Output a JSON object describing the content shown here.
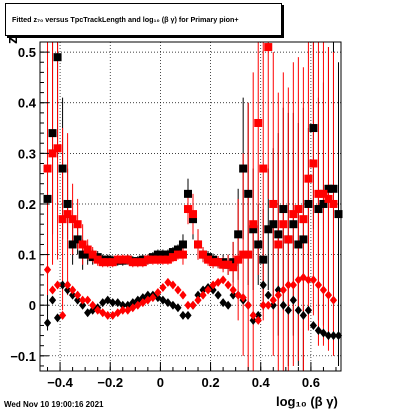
{
  "title": "Fitted  z₇₀ versus TpcTrackLength and log₁₀ (β γ) for Primary pion+",
  "footer_timestamp": "Wed Nov 10 19:00:16 2021",
  "chart_data": {
    "type": "scatter",
    "title": "Fitted  z₇₀ versus TpcTrackLength and log₁₀ (β γ) for Primary pion+",
    "xlabel": "log₁₀ (β γ)",
    "ylabel": "z",
    "xlim": [
      -0.48,
      0.72
    ],
    "ylim": [
      -0.13,
      0.52
    ],
    "grid": true,
    "xticks": [
      "−0.4",
      "−0.2",
      "0",
      "0.2",
      "0.4",
      "0.6"
    ],
    "xtick_values": [
      -0.4,
      -0.2,
      0,
      0.2,
      0.4,
      0.6
    ],
    "yticks": [
      "−0.1",
      "0",
      "0.1",
      "0.2",
      "0.3",
      "0.4",
      "0.5"
    ],
    "ytick_values": [
      -0.1,
      0,
      0.1,
      0.2,
      0.3,
      0.4,
      0.5
    ],
    "series": [
      {
        "color": "#000000",
        "marker": "square",
        "x": [
          -0.45,
          -0.43,
          -0.41,
          -0.39,
          -0.37,
          -0.35,
          -0.33,
          -0.31,
          -0.29,
          -0.27,
          -0.25,
          -0.23,
          -0.21,
          -0.19,
          -0.17,
          -0.15,
          -0.13,
          -0.11,
          -0.09,
          -0.07,
          -0.05,
          -0.03,
          -0.01,
          0.01,
          0.03,
          0.05,
          0.07,
          0.09,
          0.11,
          0.13,
          0.15,
          0.17,
          0.19,
          0.21,
          0.23,
          0.25,
          0.27,
          0.29,
          0.31,
          0.33,
          0.35,
          0.37,
          0.39,
          0.41,
          0.43,
          0.45,
          0.47,
          0.49,
          0.51,
          0.53,
          0.55,
          0.57,
          0.59,
          0.61,
          0.63,
          0.65,
          0.67,
          0.69,
          0.71
        ],
        "y": [
          0.21,
          0.34,
          0.49,
          0.27,
          0.2,
          0.12,
          0.13,
          0.1,
          0.1,
          0.095,
          0.095,
          0.09,
          0.09,
          0.088,
          0.088,
          0.088,
          0.09,
          0.087,
          0.087,
          0.09,
          0.09,
          0.095,
          0.1,
          0.1,
          0.1,
          0.105,
          0.11,
          0.12,
          0.22,
          0.17,
          0.12,
          0.1,
          0.095,
          0.09,
          0.085,
          0.085,
          0.08,
          0.085,
          0.14,
          0.27,
          0.22,
          0.15,
          0.12,
          0.09,
          0.15,
          0.16,
          0.14,
          0.19,
          0.13,
          0.16,
          0.12,
          0.13,
          0.2,
          0.35,
          0.19,
          0.2,
          0.23,
          0.23,
          0.18
        ],
        "err": [
          0.26,
          0.2,
          0.2,
          0.14,
          0.07,
          0.04,
          0.03,
          0.03,
          0.02,
          0.015,
          0.012,
          0.01,
          0.01,
          0.01,
          0.01,
          0.01,
          0.01,
          0.01,
          0.01,
          0.01,
          0.01,
          0.01,
          0.01,
          0.01,
          0.01,
          0.01,
          0.01,
          0.02,
          0.03,
          0.04,
          0.03,
          0.015,
          0.012,
          0.012,
          0.012,
          0.015,
          0.02,
          0.04,
          0.09,
          0.14,
          0.18,
          0.12,
          0.08,
          0.1,
          0.12,
          0.15,
          0.2,
          0.2,
          0.25,
          0.22,
          0.24,
          0.26,
          0.15,
          0.2,
          0.22,
          0.24,
          0.28,
          0.3,
          0.3
        ]
      },
      {
        "color": "#ff0000",
        "marker": "square",
        "x": [
          -0.45,
          -0.43,
          -0.41,
          -0.39,
          -0.37,
          -0.35,
          -0.33,
          -0.31,
          -0.29,
          -0.27,
          -0.25,
          -0.23,
          -0.21,
          -0.19,
          -0.17,
          -0.15,
          -0.13,
          -0.11,
          -0.09,
          -0.07,
          -0.05,
          -0.03,
          -0.01,
          0.01,
          0.03,
          0.05,
          0.07,
          0.09,
          0.11,
          0.13,
          0.15,
          0.17,
          0.19,
          0.21,
          0.23,
          0.25,
          0.27,
          0.29,
          0.31,
          0.33,
          0.35,
          0.37,
          0.39,
          0.41,
          0.43,
          0.45,
          0.47,
          0.49,
          0.51,
          0.53,
          0.55,
          0.57,
          0.59,
          0.61,
          0.63,
          0.65,
          0.67,
          0.69
        ],
        "y": [
          0.27,
          0.3,
          0.31,
          0.17,
          0.18,
          0.17,
          0.16,
          0.12,
          0.11,
          0.1,
          0.09,
          0.085,
          0.085,
          0.085,
          0.09,
          0.09,
          0.09,
          0.085,
          0.085,
          0.085,
          0.09,
          0.09,
          0.09,
          0.09,
          0.09,
          0.095,
          0.1,
          0.1,
          0.19,
          0.18,
          0.12,
          0.1,
          0.09,
          0.085,
          0.085,
          0.08,
          0.08,
          0.075,
          0.09,
          0.1,
          0.1,
          0.16,
          0.36,
          0.27,
          0.51,
          0.2,
          0.12,
          0.16,
          0.13,
          0.18,
          0.19,
          0.17,
          0.25,
          0.28,
          0.22,
          0.22,
          0.21,
          0.2
        ],
        "err": [
          0.25,
          0.22,
          0.22,
          0.18,
          0.16,
          0.07,
          0.05,
          0.04,
          0.02,
          0.015,
          0.012,
          0.01,
          0.01,
          0.01,
          0.01,
          0.01,
          0.01,
          0.01,
          0.01,
          0.01,
          0.01,
          0.01,
          0.01,
          0.01,
          0.01,
          0.01,
          0.01,
          0.02,
          0.03,
          0.04,
          0.03,
          0.015,
          0.012,
          0.012,
          0.012,
          0.015,
          0.02,
          0.05,
          0.12,
          0.2,
          0.3,
          0.3,
          0.3,
          0.3,
          0.3,
          0.3,
          0.3,
          0.3,
          0.3,
          0.3,
          0.3,
          0.3,
          0.3,
          0.3,
          0.3,
          0.3,
          0.3,
          0.3
        ]
      },
      {
        "color": "#000000",
        "marker": "diamond",
        "x": [
          -0.45,
          -0.43,
          -0.41,
          -0.39,
          -0.37,
          -0.35,
          -0.33,
          -0.31,
          -0.29,
          -0.27,
          -0.25,
          -0.23,
          -0.21,
          -0.19,
          -0.17,
          -0.15,
          -0.13,
          -0.11,
          -0.09,
          -0.07,
          -0.05,
          -0.03,
          -0.01,
          0.01,
          0.03,
          0.05,
          0.07,
          0.09,
          0.11,
          0.13,
          0.15,
          0.17,
          0.19,
          0.21,
          0.23,
          0.25,
          0.27,
          0.29,
          0.31,
          0.33,
          0.35,
          0.37,
          0.39,
          0.41,
          0.43,
          0.45,
          0.47,
          0.49,
          0.51,
          0.53,
          0.55,
          0.57,
          0.59,
          0.61,
          0.63,
          0.65,
          0.67,
          0.69,
          0.71
        ],
        "y": [
          -0.035,
          0.01,
          -0.025,
          0.04,
          0.03,
          0.02,
          0.01,
          0.0,
          -0.015,
          -0.01,
          -0.005,
          0.005,
          0.01,
          0.005,
          0.005,
          0.0,
          0.0,
          0.005,
          0.01,
          0.015,
          0.02,
          0.02,
          0.015,
          0.01,
          0.005,
          0.0,
          -0.005,
          -0.02,
          -0.02,
          0.0,
          0.02,
          0.03,
          0.035,
          0.03,
          0.02,
          0.005,
          0.0,
          0.02,
          0.02,
          0.01,
          0.0,
          -0.03,
          -0.02,
          0.04,
          0.02,
          0.0,
          0.03,
          0.0,
          -0.01,
          0.01,
          -0.01,
          -0.02,
          -0.01,
          -0.04,
          -0.05,
          -0.055,
          -0.06,
          -0.06,
          -0.06
        ]
      },
      {
        "color": "#ff0000",
        "marker": "diamond",
        "x": [
          -0.45,
          -0.43,
          -0.41,
          -0.39,
          -0.37,
          -0.35,
          -0.33,
          -0.31,
          -0.29,
          -0.27,
          -0.25,
          -0.23,
          -0.21,
          -0.19,
          -0.17,
          -0.15,
          -0.13,
          -0.11,
          -0.09,
          -0.07,
          -0.05,
          -0.03,
          -0.01,
          0.01,
          0.03,
          0.05,
          0.07,
          0.09,
          0.11,
          0.13,
          0.15,
          0.17,
          0.19,
          0.21,
          0.23,
          0.25,
          0.27,
          0.29,
          0.31,
          0.33,
          0.35,
          0.37,
          0.39,
          0.41,
          0.43,
          0.45,
          0.47,
          0.49,
          0.51,
          0.53,
          0.55,
          0.57,
          0.59,
          0.61,
          0.63,
          0.65,
          0.67,
          0.69
        ],
        "y": [
          0.07,
          0.03,
          0.04,
          -0.02,
          0.04,
          0.03,
          0.02,
          0.01,
          0.01,
          0.0,
          -0.01,
          -0.015,
          -0.02,
          -0.02,
          -0.015,
          -0.01,
          -0.01,
          -0.005,
          0.0,
          0.005,
          0.01,
          0.015,
          0.025,
          0.035,
          0.045,
          0.04,
          0.03,
          0.02,
          0.0,
          0.0,
          0.01,
          0.02,
          0.03,
          0.04,
          0.045,
          0.05,
          0.04,
          0.03,
          0.02,
          0.015,
          0.0,
          -0.02,
          -0.03,
          0.0,
          0.0,
          0.01,
          0.02,
          0.03,
          0.04,
          0.04,
          0.05,
          0.055,
          0.05,
          0.05,
          0.04,
          0.03,
          0.02,
          0.01
        ]
      }
    ]
  }
}
